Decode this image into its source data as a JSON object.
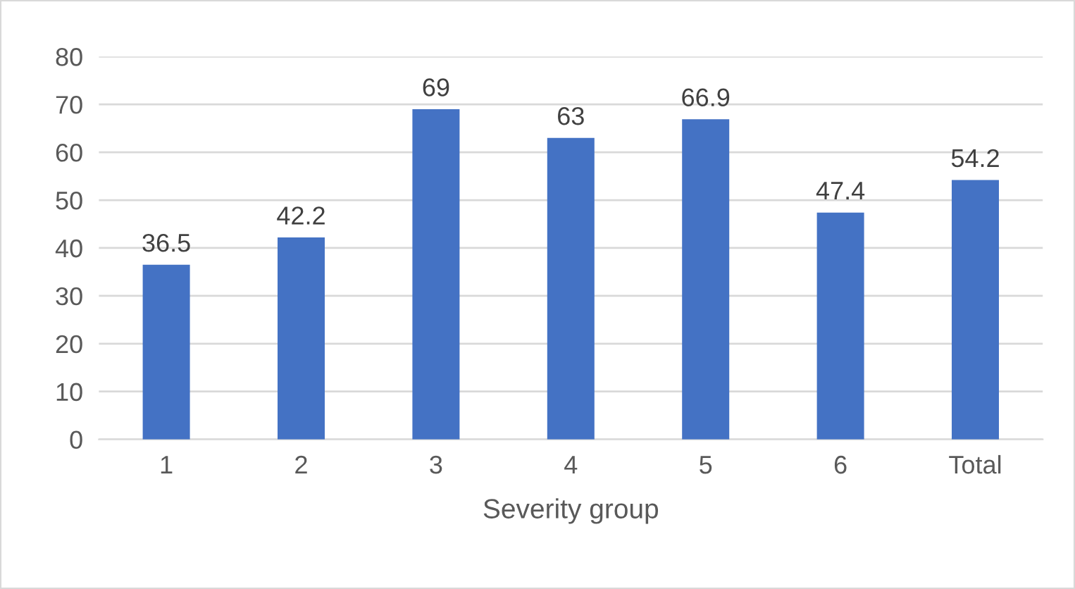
{
  "chart_data": {
    "type": "bar",
    "xlabel": "Severity group",
    "categories": [
      "1",
      "2",
      "3",
      "4",
      "5",
      "6",
      "Total"
    ],
    "values": [
      36.5,
      42.2,
      69,
      63,
      66.9,
      47.4,
      54.2
    ],
    "color": "#4472c4",
    "ylim": [
      0,
      80
    ],
    "yticks": [
      0,
      10,
      20,
      30,
      40,
      50,
      60,
      70,
      80
    ],
    "grid": "y",
    "data_labels": true,
    "legend": false
  }
}
